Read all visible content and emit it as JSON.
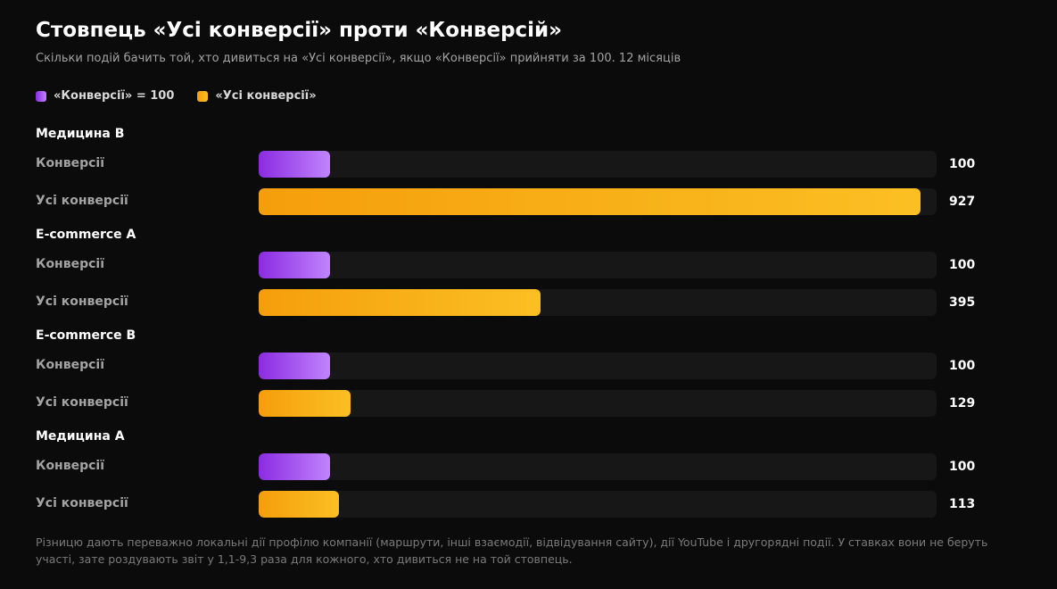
{
  "title": "Стовпець «Усі конверсії» проти «Конверсій»",
  "subtitle": "Скільки подій бачить той, хто дивиться на «Усі конверсії», якщо «Конверсії» прийняти за 100. 12 місяців",
  "legend": [
    {
      "label": "«Конверсії» = 100",
      "color": "#a855f7"
    },
    {
      "label": "«Усі конверсії»",
      "color": "#fbbf24"
    }
  ],
  "footnote": "Різницю дають переважно локальні дії профілю компанії (маршрути, інші взаємодії, відвідування сайту), дії YouTube і другорядні події. У ставках вони не беруть участі, зате роздувають звіт у 1,1-9,3 раза для кожного, хто дивиться не на той стовпець.",
  "chart_data": {
    "type": "bar",
    "orientation": "horizontal",
    "title": "Стовпець «Усі конверсії» проти «Конверсій»",
    "subtitle": "Скільки подій бачить той, хто дивиться на «Усі конверсії», якщо «Конверсії» прийняти за 100. 12 місяців",
    "xlim": [
      0,
      950
    ],
    "grid": false,
    "legend_position": "top-left",
    "colors": {
      "base": "#a855f7",
      "all": "#fbbf24"
    },
    "groups": [
      {
        "name": "Медицина B",
        "rows": [
          {
            "label": "Конверсії",
            "value": 100,
            "value_label": "100",
            "series": "base"
          },
          {
            "label": "Усі конверсії",
            "value": 927,
            "value_label": "927",
            "series": "all"
          }
        ]
      },
      {
        "name": "E-commerce A",
        "rows": [
          {
            "label": "Конверсії",
            "value": 100,
            "value_label": "100",
            "series": "base"
          },
          {
            "label": "Усі конверсії",
            "value": 395,
            "value_label": "395",
            "series": "all"
          }
        ]
      },
      {
        "name": "E-commerce B",
        "rows": [
          {
            "label": "Конверсії",
            "value": 100,
            "value_label": "100",
            "series": "base"
          },
          {
            "label": "Усі конверсії",
            "value": 129,
            "value_label": "129",
            "series": "all"
          }
        ]
      },
      {
        "name": "Медицина A",
        "rows": [
          {
            "label": "Конверсії",
            "value": 100,
            "value_label": "100",
            "series": "base"
          },
          {
            "label": "Усі конверсії",
            "value": 113,
            "value_label": "113",
            "series": "all"
          }
        ]
      }
    ]
  }
}
